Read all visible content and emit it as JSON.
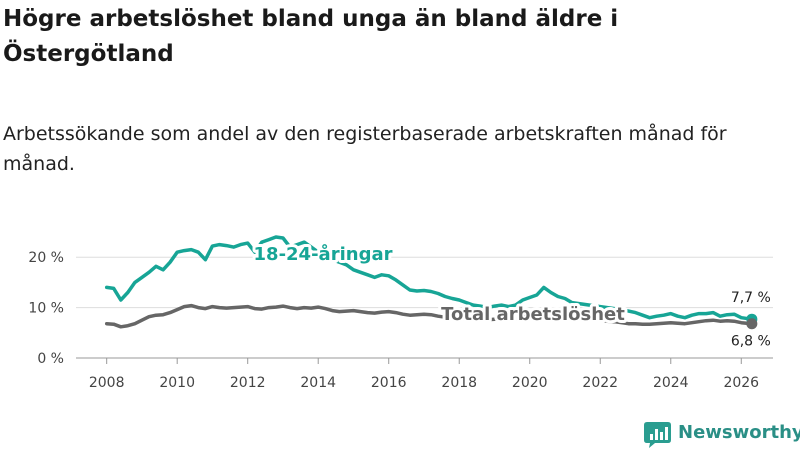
{
  "title": "Högre arbetslöshet bland unga än bland äldre i Östergötland",
  "subtitle": "Arbetssökande som andel av den registerbaserade arbetskraften månad för månad.",
  "brand": {
    "name": "Newsworthy",
    "color": "#2a9d90"
  },
  "chart_data": {
    "type": "line",
    "title": "Högre arbetslöshet bland unga än bland äldre i Östergötland",
    "xlabel": "",
    "ylabel": "",
    "xlim": [
      2007.3,
      2026.9
    ],
    "ylim": [
      0,
      25
    ],
    "x_ticks": [
      2008,
      2010,
      2012,
      2014,
      2016,
      2018,
      2020,
      2022,
      2024,
      2026
    ],
    "x_tick_labels": [
      "2008",
      "2010",
      "2012",
      "2014",
      "2016",
      "2018",
      "2020",
      "2022",
      "2024",
      "2026"
    ],
    "y_ticks": [
      0,
      10,
      20
    ],
    "y_tick_labels": [
      "0 %",
      "10 %",
      "20 %"
    ],
    "grid": "horizontal",
    "series": [
      {
        "name": "18-24-åringar",
        "color": "#17a596",
        "label": "18-24-åringar",
        "end_label": "7,7 %",
        "x": [
          2008.0,
          2008.2,
          2008.4,
          2008.6,
          2008.8,
          2009.0,
          2009.2,
          2009.4,
          2009.6,
          2009.8,
          2010.0,
          2010.2,
          2010.4,
          2010.6,
          2010.8,
          2011.0,
          2011.2,
          2011.4,
          2011.6,
          2011.8,
          2012.0,
          2012.2,
          2012.4,
          2012.6,
          2012.8,
          2013.0,
          2013.2,
          2013.4,
          2013.6,
          2013.8,
          2014.0,
          2014.2,
          2014.4,
          2014.6,
          2014.8,
          2015.0,
          2015.2,
          2015.4,
          2015.6,
          2015.8,
          2016.0,
          2016.2,
          2016.4,
          2016.6,
          2016.8,
          2017.0,
          2017.2,
          2017.4,
          2017.6,
          2017.8,
          2018.0,
          2018.2,
          2018.4,
          2018.6,
          2018.8,
          2019.0,
          2019.2,
          2019.4,
          2019.6,
          2019.8,
          2020.0,
          2020.2,
          2020.4,
          2020.6,
          2020.8,
          2021.0,
          2021.2,
          2021.4,
          2021.6,
          2021.8,
          2022.0,
          2022.2,
          2022.4,
          2022.6,
          2022.8,
          2023.0,
          2023.2,
          2023.4,
          2023.6,
          2023.8,
          2024.0,
          2024.2,
          2024.4,
          2024.6,
          2024.8,
          2025.0,
          2025.2,
          2025.4,
          2025.6,
          2025.8,
          2026.0,
          2026.3
        ],
        "values": [
          14.0,
          13.8,
          11.5,
          13.0,
          15.0,
          16.0,
          17.0,
          18.2,
          17.5,
          19.0,
          21.0,
          21.3,
          21.5,
          21.0,
          19.5,
          22.2,
          22.5,
          22.3,
          22.0,
          22.5,
          22.8,
          21.0,
          23.0,
          23.5,
          24.0,
          23.8,
          22.0,
          22.5,
          23.0,
          22.0,
          21.0,
          20.0,
          19.5,
          19.0,
          18.5,
          17.5,
          17.0,
          16.5,
          16.0,
          16.5,
          16.3,
          15.5,
          14.5,
          13.5,
          13.3,
          13.4,
          13.2,
          12.8,
          12.2,
          11.8,
          11.5,
          11.0,
          10.5,
          10.3,
          10.0,
          10.3,
          10.5,
          10.2,
          10.5,
          11.5,
          12.0,
          12.5,
          14.0,
          13.0,
          12.2,
          11.8,
          11.0,
          10.8,
          10.6,
          10.4,
          10.2,
          10.0,
          9.8,
          9.6,
          9.3,
          9.0,
          8.5,
          8.0,
          8.3,
          8.5,
          8.8,
          8.3,
          8.0,
          8.5,
          8.8,
          8.8,
          9.0,
          8.3,
          8.6,
          8.7,
          8.0,
          7.7
        ]
      },
      {
        "name": "Total arbetslöshet",
        "color": "#666666",
        "label": "Total arbetslöshet",
        "end_label": "6,8 %",
        "x": [
          2008.0,
          2008.2,
          2008.4,
          2008.6,
          2008.8,
          2009.0,
          2009.2,
          2009.4,
          2009.6,
          2009.8,
          2010.0,
          2010.2,
          2010.4,
          2010.6,
          2010.8,
          2011.0,
          2011.2,
          2011.4,
          2011.6,
          2011.8,
          2012.0,
          2012.2,
          2012.4,
          2012.6,
          2012.8,
          2013.0,
          2013.2,
          2013.4,
          2013.6,
          2013.8,
          2014.0,
          2014.2,
          2014.4,
          2014.6,
          2014.8,
          2015.0,
          2015.2,
          2015.4,
          2015.6,
          2015.8,
          2016.0,
          2016.2,
          2016.4,
          2016.6,
          2016.8,
          2017.0,
          2017.2,
          2017.4,
          2017.6,
          2017.8,
          2018.0,
          2018.2,
          2018.4,
          2018.6,
          2018.8,
          2019.0,
          2019.2,
          2019.4,
          2019.6,
          2019.8,
          2020.0,
          2020.2,
          2020.4,
          2020.6,
          2020.8,
          2021.0,
          2021.2,
          2021.4,
          2021.6,
          2021.8,
          2022.0,
          2022.2,
          2022.4,
          2022.6,
          2022.8,
          2023.0,
          2023.2,
          2023.4,
          2023.6,
          2023.8,
          2024.0,
          2024.2,
          2024.4,
          2024.6,
          2024.8,
          2025.0,
          2025.2,
          2025.4,
          2025.6,
          2025.8,
          2026.0,
          2026.3
        ],
        "values": [
          6.8,
          6.7,
          6.2,
          6.4,
          6.8,
          7.5,
          8.2,
          8.5,
          8.6,
          9.0,
          9.6,
          10.2,
          10.4,
          10.0,
          9.8,
          10.2,
          10.0,
          9.9,
          10.0,
          10.1,
          10.2,
          9.8,
          9.7,
          10.0,
          10.1,
          10.3,
          10.0,
          9.8,
          10.0,
          9.9,
          10.1,
          9.8,
          9.4,
          9.2,
          9.3,
          9.4,
          9.2,
          9.0,
          8.9,
          9.1,
          9.2,
          9.0,
          8.7,
          8.5,
          8.6,
          8.7,
          8.6,
          8.3,
          8.1,
          7.9,
          7.8,
          7.7,
          7.6,
          7.5,
          7.6,
          7.7,
          7.8,
          7.7,
          7.8,
          8.2,
          8.5,
          8.8,
          9.0,
          8.7,
          8.4,
          8.2,
          8.0,
          7.9,
          7.8,
          7.6,
          7.5,
          7.3,
          7.2,
          7.0,
          6.8,
          6.8,
          6.7,
          6.7,
          6.8,
          6.9,
          7.0,
          6.9,
          6.8,
          7.0,
          7.2,
          7.4,
          7.5,
          7.3,
          7.4,
          7.3,
          7.0,
          6.8
        ]
      }
    ]
  }
}
